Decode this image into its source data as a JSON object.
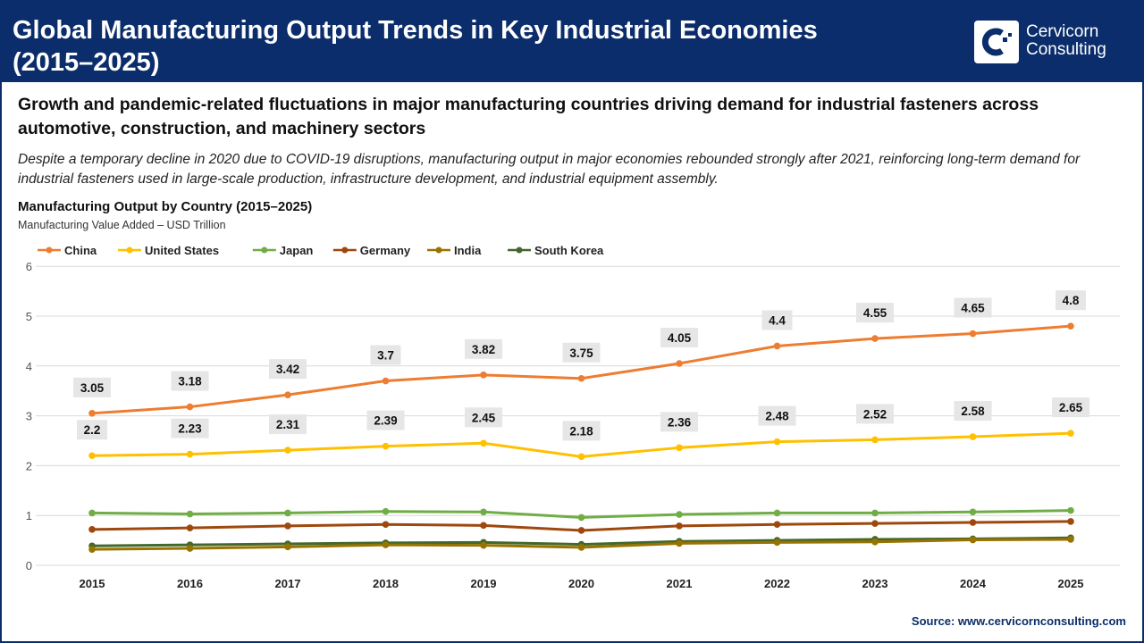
{
  "header": {
    "title_line1": "Global Manufacturing Output Trends in Key Industrial Economies",
    "title_line2": "(2015–2025)",
    "logo_text_1": "Cervicorn",
    "logo_text_2": "Consulting"
  },
  "subtitle": "Growth and pandemic-related fluctuations in major manufacturing countries driving demand for industrial fasteners across automotive, construction, and machinery sectors",
  "description": "Despite a temporary decline in 2020 due to COVID-19 disruptions, manufacturing output in major economies rebounded strongly after 2021, reinforcing long-term demand for industrial fasteners used in large-scale production, infrastructure development, and industrial equipment assembly.",
  "source": "Source: www.cervicornconsulting.com",
  "chart_data": {
    "type": "line",
    "title": "Manufacturing Output by Country (2015–2025)",
    "ylabel": "Manufacturing Value Added – USD Trillion",
    "ylim": [
      0,
      6
    ],
    "yticks": [
      "0",
      "1",
      "2",
      "3",
      "4",
      "5",
      "6"
    ],
    "grid": true,
    "legend": "top-left",
    "x": [
      "2015",
      "2016",
      "2017",
      "2018",
      "2019",
      "2020",
      "2021",
      "2022",
      "2023",
      "2024",
      "2025"
    ],
    "series": [
      {
        "name": "China",
        "color": "#ed7d31",
        "labels": true,
        "values": [
          3.05,
          3.18,
          3.42,
          3.7,
          3.82,
          3.75,
          4.05,
          4.4,
          4.55,
          4.65,
          4.8
        ]
      },
      {
        "name": "United States",
        "color": "#ffc000",
        "labels": true,
        "values": [
          2.2,
          2.23,
          2.31,
          2.39,
          2.45,
          2.18,
          2.36,
          2.48,
          2.52,
          2.58,
          2.65
        ]
      },
      {
        "name": "Japan",
        "color": "#70ad47",
        "labels": false,
        "values": [
          1.05,
          1.03,
          1.05,
          1.08,
          1.07,
          0.96,
          1.02,
          1.05,
          1.05,
          1.07,
          1.1
        ]
      },
      {
        "name": "Germany",
        "color": "#9e480e",
        "labels": false,
        "values": [
          0.72,
          0.75,
          0.79,
          0.82,
          0.8,
          0.7,
          0.79,
          0.82,
          0.84,
          0.86,
          0.88
        ]
      },
      {
        "name": "India",
        "color": "#997300",
        "labels": false,
        "values": [
          0.32,
          0.34,
          0.37,
          0.41,
          0.4,
          0.36,
          0.44,
          0.46,
          0.47,
          0.51,
          0.52
        ]
      },
      {
        "name": "South Korea",
        "color": "#43682b",
        "labels": false,
        "values": [
          0.39,
          0.41,
          0.43,
          0.45,
          0.46,
          0.42,
          0.48,
          0.5,
          0.52,
          0.53,
          0.55
        ]
      }
    ]
  }
}
